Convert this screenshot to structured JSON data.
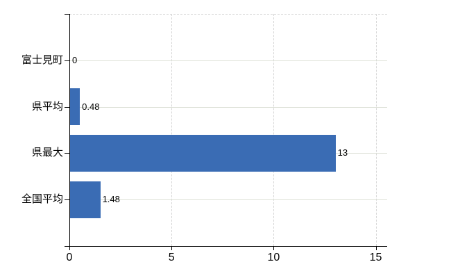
{
  "chart_data": {
    "type": "bar",
    "orientation": "horizontal",
    "title": "",
    "categories": [
      "富士見町",
      "県平均",
      "県最大",
      "全国平均"
    ],
    "values": [
      0,
      0.48,
      13,
      1.48
    ],
    "value_labels": [
      "0",
      "0.48",
      "13",
      "1.48"
    ],
    "x_ticks": [
      0,
      5,
      10,
      15
    ],
    "x_tick_labels": [
      "0",
      "5",
      "10",
      "15"
    ],
    "xlim": [
      0,
      15.56
    ],
    "grid": true,
    "legend": false,
    "bar_color": "#3a6cb4",
    "axis_color": "#000000",
    "h_grid_color": "#dce0d6",
    "v_grid_color": "#d6d6d6",
    "text_color": "#000000",
    "background": "#ffffff"
  }
}
